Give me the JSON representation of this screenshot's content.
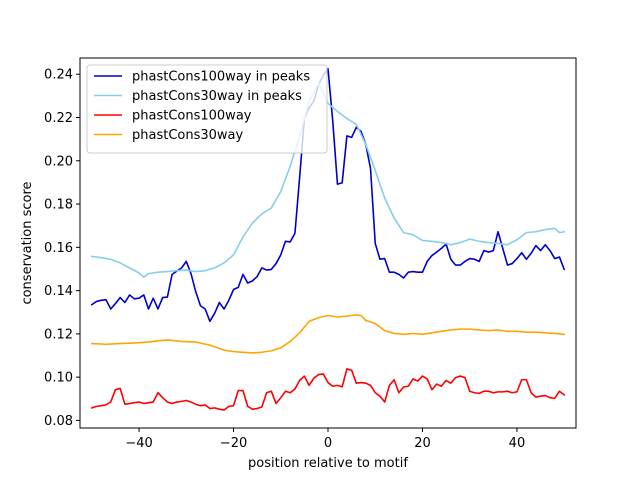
{
  "chart_data": {
    "type": "line",
    "title": "",
    "xlabel": "position relative to motif",
    "ylabel": "conservation score",
    "xlim": [
      -52.5,
      52.5
    ],
    "ylim": [
      0.0765,
      0.2475
    ],
    "xticks": [
      -40,
      -20,
      0,
      20,
      40
    ],
    "yticks": [
      0.08,
      0.1,
      0.12,
      0.14,
      0.16,
      0.18,
      0.2,
      0.22,
      0.24
    ],
    "ytick_labels": [
      "0.08",
      "0.10",
      "0.12",
      "0.14",
      "0.16",
      "0.18",
      "0.20",
      "0.22",
      "0.24"
    ],
    "xtick_labels": [
      "−40",
      "−20",
      "0",
      "20",
      "40"
    ],
    "grid": false,
    "legend": "upper left",
    "series": [
      {
        "name": "phastCons100way in peaks",
        "color": "#0000cc",
        "points": [
          [
            -50,
            0.1335
          ],
          [
            -49,
            0.135
          ],
          [
            -48,
            0.1355
          ],
          [
            -47,
            0.1358
          ],
          [
            -46,
            0.1315
          ],
          [
            -45,
            0.134
          ],
          [
            -44,
            0.1368
          ],
          [
            -43,
            0.1345
          ],
          [
            -42,
            0.138
          ],
          [
            -41,
            0.1362
          ],
          [
            -40,
            0.1365
          ],
          [
            -39,
            0.138
          ],
          [
            -38,
            0.1315
          ],
          [
            -37,
            0.1365
          ],
          [
            -36,
            0.1315
          ],
          [
            -35,
            0.1368
          ],
          [
            -34,
            0.137
          ],
          [
            -33,
            0.1475
          ],
          [
            -32,
            0.149
          ],
          [
            -31,
            0.1505
          ],
          [
            -30,
            0.1535
          ],
          [
            -29,
            0.1478
          ],
          [
            -28,
            0.1395
          ],
          [
            -27,
            0.133
          ],
          [
            -26,
            0.1315
          ],
          [
            -25,
            0.1258
          ],
          [
            -24,
            0.1295
          ],
          [
            -23,
            0.1345
          ],
          [
            -22,
            0.1315
          ],
          [
            -21,
            0.1355
          ],
          [
            -20,
            0.1405
          ],
          [
            -19,
            0.1415
          ],
          [
            -18,
            0.1475
          ],
          [
            -17,
            0.1435
          ],
          [
            -16,
            0.1445
          ],
          [
            -15,
            0.1465
          ],
          [
            -14,
            0.1505
          ],
          [
            -13,
            0.1495
          ],
          [
            -12,
            0.1498
          ],
          [
            -11,
            0.1525
          ],
          [
            -10,
            0.1565
          ],
          [
            -9,
            0.1628
          ],
          [
            -8,
            0.1625
          ],
          [
            -7,
            0.1665
          ],
          [
            -6,
            0.1925
          ],
          [
            -5,
            0.2195
          ],
          [
            -4,
            0.2245
          ],
          [
            -3,
            0.2275
          ],
          [
            -2,
            0.2352
          ],
          [
            -1,
            0.2395
          ],
          [
            0,
            0.2425
          ],
          [
            1,
            0.2185
          ],
          [
            2,
            0.1892
          ],
          [
            3,
            0.1898
          ],
          [
            4,
            0.2115
          ],
          [
            5,
            0.2108
          ],
          [
            6,
            0.2155
          ],
          [
            7,
            0.2135
          ],
          [
            8,
            0.2075
          ],
          [
            9,
            0.1965
          ],
          [
            10,
            0.1618
          ],
          [
            11,
            0.1545
          ],
          [
            12,
            0.1548
          ],
          [
            13,
            0.1485
          ],
          [
            14,
            0.1485
          ],
          [
            15,
            0.1475
          ],
          [
            16,
            0.1458
          ],
          [
            17,
            0.1485
          ],
          [
            18,
            0.1488
          ],
          [
            19,
            0.1485
          ],
          [
            20,
            0.1485
          ],
          [
            21,
            0.1535
          ],
          [
            22,
            0.1562
          ],
          [
            23,
            0.1578
          ],
          [
            24,
            0.1595
          ],
          [
            25,
            0.1615
          ],
          [
            26,
            0.1545
          ],
          [
            27,
            0.1518
          ],
          [
            28,
            0.1518
          ],
          [
            29,
            0.1535
          ],
          [
            30,
            0.1548
          ],
          [
            31,
            0.1545
          ],
          [
            32,
            0.1535
          ],
          [
            33,
            0.1585
          ],
          [
            34,
            0.1578
          ],
          [
            35,
            0.1585
          ],
          [
            36,
            0.1672
          ],
          [
            37,
            0.1595
          ],
          [
            38,
            0.1518
          ],
          [
            39,
            0.1525
          ],
          [
            40,
            0.1548
          ],
          [
            41,
            0.1575
          ],
          [
            42,
            0.1545
          ],
          [
            43,
            0.1572
          ],
          [
            44,
            0.1608
          ],
          [
            45,
            0.1585
          ],
          [
            46,
            0.1612
          ],
          [
            47,
            0.1585
          ],
          [
            48,
            0.1548
          ],
          [
            49,
            0.1555
          ],
          [
            50,
            0.1498
          ]
        ]
      },
      {
        "name": "phastCons30way in peaks",
        "color": "#87ceeb",
        "points": [
          [
            -50,
            0.1558
          ],
          [
            -48,
            0.1552
          ],
          [
            -46,
            0.1545
          ],
          [
            -44,
            0.1528
          ],
          [
            -42,
            0.1505
          ],
          [
            -40,
            0.1482
          ],
          [
            -39,
            0.1462
          ],
          [
            -38,
            0.1478
          ],
          [
            -36,
            0.1485
          ],
          [
            -34,
            0.1488
          ],
          [
            -32,
            0.1492
          ],
          [
            -30,
            0.1495
          ],
          [
            -28,
            0.1488
          ],
          [
            -26,
            0.1492
          ],
          [
            -24,
            0.1505
          ],
          [
            -22,
            0.1528
          ],
          [
            -20,
            0.1565
          ],
          [
            -18,
            0.1648
          ],
          [
            -16,
            0.1712
          ],
          [
            -14,
            0.1755
          ],
          [
            -12,
            0.1782
          ],
          [
            -10,
            0.1858
          ],
          [
            -8,
            0.1975
          ],
          [
            -6,
            0.2115
          ],
          [
            -4,
            0.2278
          ],
          [
            -2,
            0.2358
          ],
          [
            0,
            0.2265
          ],
          [
            2,
            0.2228
          ],
          [
            4,
            0.2195
          ],
          [
            6,
            0.2168
          ],
          [
            8,
            0.2075
          ],
          [
            10,
            0.1955
          ],
          [
            12,
            0.1828
          ],
          [
            14,
            0.1735
          ],
          [
            16,
            0.1668
          ],
          [
            18,
            0.1658
          ],
          [
            20,
            0.1632
          ],
          [
            22,
            0.1628
          ],
          [
            24,
            0.1622
          ],
          [
            26,
            0.1612
          ],
          [
            28,
            0.1622
          ],
          [
            30,
            0.1638
          ],
          [
            32,
            0.1628
          ],
          [
            34,
            0.1622
          ],
          [
            36,
            0.1618
          ],
          [
            38,
            0.1612
          ],
          [
            40,
            0.1635
          ],
          [
            42,
            0.1668
          ],
          [
            44,
            0.1672
          ],
          [
            46,
            0.1682
          ],
          [
            48,
            0.1688
          ],
          [
            49,
            0.1668
          ],
          [
            50,
            0.1672
          ]
        ]
      },
      {
        "name": "phastCons100way",
        "color": "#ff0000",
        "points": [
          [
            -50,
            0.0858
          ],
          [
            -49,
            0.0865
          ],
          [
            -48,
            0.0868
          ],
          [
            -47,
            0.0872
          ],
          [
            -46,
            0.0885
          ],
          [
            -45,
            0.0942
          ],
          [
            -44,
            0.0948
          ],
          [
            -43,
            0.0875
          ],
          [
            -42,
            0.0878
          ],
          [
            -41,
            0.0882
          ],
          [
            -40,
            0.0885
          ],
          [
            -39,
            0.0878
          ],
          [
            -38,
            0.0882
          ],
          [
            -37,
            0.0885
          ],
          [
            -36,
            0.0928
          ],
          [
            -35,
            0.0905
          ],
          [
            -34,
            0.0885
          ],
          [
            -33,
            0.0878
          ],
          [
            -32,
            0.0885
          ],
          [
            -31,
            0.0888
          ],
          [
            -30,
            0.0892
          ],
          [
            -29,
            0.0885
          ],
          [
            -28,
            0.0875
          ],
          [
            -27,
            0.0868
          ],
          [
            -26,
            0.0872
          ],
          [
            -25,
            0.0855
          ],
          [
            -24,
            0.0858
          ],
          [
            -23,
            0.0852
          ],
          [
            -22,
            0.0848
          ],
          [
            -21,
            0.0865
          ],
          [
            -20,
            0.0868
          ],
          [
            -19,
            0.0938
          ],
          [
            -18,
            0.0938
          ],
          [
            -17,
            0.0865
          ],
          [
            -16,
            0.0852
          ],
          [
            -15,
            0.0855
          ],
          [
            -14,
            0.0862
          ],
          [
            -13,
            0.0928
          ],
          [
            -12,
            0.0935
          ],
          [
            -11,
            0.0878
          ],
          [
            -10,
            0.0905
          ],
          [
            -9,
            0.0935
          ],
          [
            -8,
            0.0928
          ],
          [
            -7,
            0.0945
          ],
          [
            -6,
            0.0985
          ],
          [
            -5,
            0.1005
          ],
          [
            -4,
            0.0962
          ],
          [
            -3,
            0.0995
          ],
          [
            -2,
            0.1012
          ],
          [
            -1,
            0.1015
          ],
          [
            0,
            0.0975
          ],
          [
            1,
            0.0958
          ],
          [
            2,
            0.0962
          ],
          [
            3,
            0.0955
          ],
          [
            4,
            0.1038
          ],
          [
            5,
            0.1032
          ],
          [
            6,
            0.0972
          ],
          [
            7,
            0.0975
          ],
          [
            8,
            0.0972
          ],
          [
            9,
            0.0962
          ],
          [
            10,
            0.0928
          ],
          [
            11,
            0.0912
          ],
          [
            12,
            0.0885
          ],
          [
            13,
            0.0962
          ],
          [
            14,
            0.0988
          ],
          [
            15,
            0.0928
          ],
          [
            16,
            0.0955
          ],
          [
            17,
            0.0958
          ],
          [
            18,
            0.0992
          ],
          [
            19,
            0.0982
          ],
          [
            20,
            0.1005
          ],
          [
            21,
            0.0992
          ],
          [
            22,
            0.0942
          ],
          [
            23,
            0.0968
          ],
          [
            24,
            0.0958
          ],
          [
            25,
            0.0985
          ],
          [
            26,
            0.0972
          ],
          [
            27,
            0.0998
          ],
          [
            28,
            0.1005
          ],
          [
            29,
            0.0998
          ],
          [
            30,
            0.0935
          ],
          [
            31,
            0.0928
          ],
          [
            32,
            0.0925
          ],
          [
            33,
            0.0935
          ],
          [
            34,
            0.0935
          ],
          [
            35,
            0.0928
          ],
          [
            36,
            0.0932
          ],
          [
            37,
            0.0932
          ],
          [
            38,
            0.0935
          ],
          [
            39,
            0.0928
          ],
          [
            40,
            0.0932
          ],
          [
            41,
            0.0988
          ],
          [
            42,
            0.0988
          ],
          [
            43,
            0.0928
          ],
          [
            44,
            0.0908
          ],
          [
            45,
            0.0912
          ],
          [
            46,
            0.0915
          ],
          [
            47,
            0.0905
          ],
          [
            48,
            0.0902
          ],
          [
            49,
            0.0935
          ],
          [
            50,
            0.0918
          ]
        ]
      },
      {
        "name": "phastCons30way",
        "color": "#ffa500",
        "points": [
          [
            -50,
            0.1155
          ],
          [
            -47,
            0.1152
          ],
          [
            -44,
            0.1155
          ],
          [
            -41,
            0.1158
          ],
          [
            -38,
            0.1162
          ],
          [
            -36,
            0.1168
          ],
          [
            -34,
            0.1172
          ],
          [
            -31,
            0.1165
          ],
          [
            -28,
            0.1162
          ],
          [
            -25,
            0.1148
          ],
          [
            -22,
            0.1125
          ],
          [
            -20,
            0.1118
          ],
          [
            -18,
            0.1115
          ],
          [
            -16,
            0.1112
          ],
          [
            -14,
            0.1115
          ],
          [
            -12,
            0.1122
          ],
          [
            -10,
            0.1135
          ],
          [
            -8,
            0.1165
          ],
          [
            -6,
            0.1205
          ],
          [
            -4,
            0.1258
          ],
          [
            -2,
            0.1275
          ],
          [
            0,
            0.1285
          ],
          [
            2,
            0.1278
          ],
          [
            4,
            0.1282
          ],
          [
            6,
            0.1288
          ],
          [
            7,
            0.1285
          ],
          [
            8,
            0.1262
          ],
          [
            10,
            0.1248
          ],
          [
            12,
            0.1215
          ],
          [
            14,
            0.1202
          ],
          [
            16,
            0.1198
          ],
          [
            18,
            0.1202
          ],
          [
            20,
            0.1198
          ],
          [
            22,
            0.1205
          ],
          [
            24,
            0.1212
          ],
          [
            26,
            0.1218
          ],
          [
            28,
            0.1222
          ],
          [
            30,
            0.1222
          ],
          [
            32,
            0.1218
          ],
          [
            34,
            0.1215
          ],
          [
            36,
            0.1218
          ],
          [
            38,
            0.1212
          ],
          [
            40,
            0.1212
          ],
          [
            42,
            0.1208
          ],
          [
            44,
            0.1208
          ],
          [
            46,
            0.1205
          ],
          [
            48,
            0.1202
          ],
          [
            50,
            0.1198
          ]
        ]
      }
    ]
  }
}
